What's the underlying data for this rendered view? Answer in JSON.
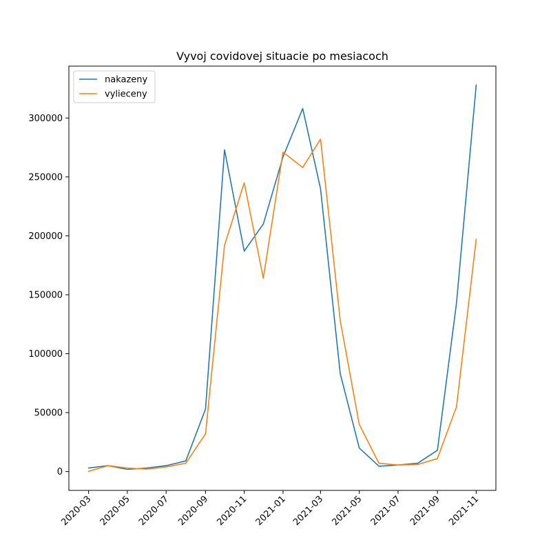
{
  "chart_data": {
    "type": "line",
    "title": "Vyvoj covidovej situacie po mesiacoch",
    "xlabel": "",
    "ylabel": "",
    "x": [
      "2020-03-01",
      "2020-04-01",
      "2020-05-01",
      "2020-06-01",
      "2020-07-01",
      "2020-08-01",
      "2020-09-01",
      "2020-10-01",
      "2020-11-01",
      "2020-12-01",
      "2021-01-01",
      "2021-02-01",
      "2021-03-01",
      "2021-04-01",
      "2021-05-01",
      "2021-06-01",
      "2021-07-01",
      "2021-08-01",
      "2021-09-01",
      "2021-10-01",
      "2021-11-01"
    ],
    "series": [
      {
        "name": "nakazeny",
        "color": "#1f77b4",
        "values": [
          3000,
          5000,
          1800,
          3000,
          5000,
          9000,
          53000,
          273000,
          187000,
          210000,
          267000,
          308000,
          240000,
          83000,
          20000,
          4500,
          5500,
          7000,
          18000,
          143000,
          328000
        ]
      },
      {
        "name": "vylieceny",
        "color": "#ff7f0e",
        "values": [
          200,
          5000,
          3000,
          2000,
          4000,
          7000,
          32000,
          192000,
          245000,
          164000,
          271000,
          258000,
          282000,
          128000,
          40000,
          7000,
          5500,
          6000,
          11000,
          55000,
          197000
        ]
      }
    ],
    "xticks": [
      "2020-03",
      "2020-05",
      "2020-07",
      "2020-09",
      "2020-11",
      "2021-01",
      "2021-03",
      "2021-05",
      "2021-07",
      "2021-09",
      "2021-11"
    ],
    "yticks": [
      0,
      50000,
      100000,
      150000,
      200000,
      250000,
      300000
    ],
    "ylim": [
      -16000,
      344000
    ],
    "xlim": [
      "2020-01-30",
      "2021-12-02"
    ],
    "grid": false,
    "legend_position": "upper left"
  }
}
